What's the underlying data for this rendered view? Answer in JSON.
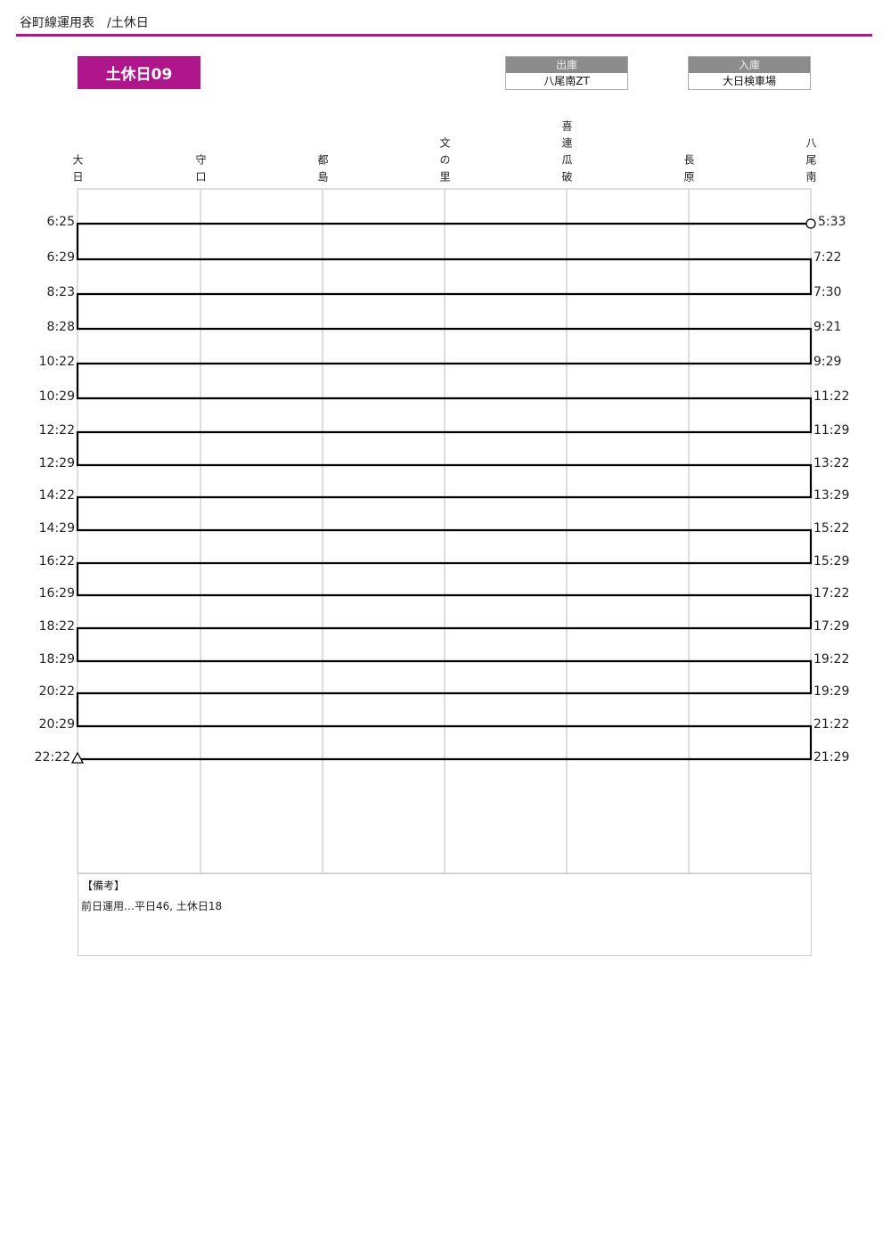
{
  "header": {
    "title": "谷町線運用表　/土休日"
  },
  "operation": {
    "name": "土休日09"
  },
  "depart": {
    "label": "出庫",
    "value": "八尾南ZT"
  },
  "arrive": {
    "label": "入庫",
    "value": "大日検車場"
  },
  "stations": [
    "大日",
    "守口",
    "都島",
    "文の里",
    "喜連瓜破",
    "長原",
    "八尾南"
  ],
  "trips": {
    "left_times": [
      "6:25",
      "6:29",
      "8:23",
      "8:28",
      "10:22",
      "10:29",
      "12:22",
      "12:29",
      "14:22",
      "14:29",
      "16:22",
      "16:29",
      "18:22",
      "18:29",
      "20:22",
      "20:29",
      "22:22"
    ],
    "right_times": [
      "5:33",
      "7:22",
      "7:30",
      "9:21",
      "9:29",
      "11:22",
      "11:29",
      "13:22",
      "13:29",
      "15:22",
      "15:29",
      "17:22",
      "17:29",
      "19:22",
      "19:29",
      "21:22",
      "21:29"
    ],
    "start_marker": "circle",
    "end_marker": "triangle"
  },
  "remarks": {
    "title": "【備考】",
    "text": "前日運用…平日46, 土休日18"
  },
  "colors": {
    "accent": "#b0168c",
    "depot_header": "#8c8c8c"
  }
}
